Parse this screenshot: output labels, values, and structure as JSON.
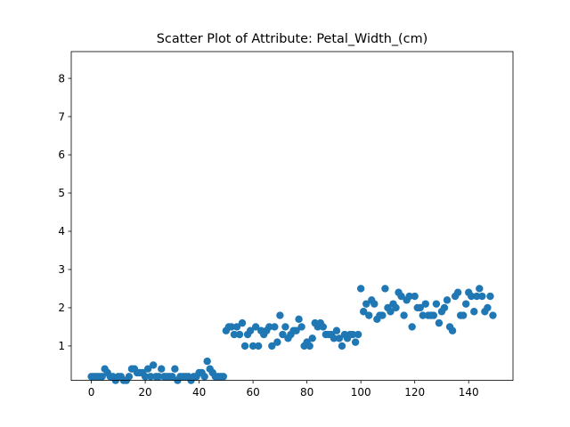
{
  "chart_data": {
    "type": "scatter",
    "title": "Scatter Plot of Attribute: Petal_Width_(cm)",
    "xlabel": "",
    "ylabel": "",
    "xlim": [
      -7.45,
      156.45
    ],
    "ylim": [
      0.1,
      8.7
    ],
    "xticks": [
      0,
      20,
      40,
      60,
      80,
      100,
      120,
      140
    ],
    "yticks": [
      1,
      2,
      3,
      4,
      5,
      6,
      7,
      8
    ],
    "grid": false,
    "color": "#1f77b4",
    "x": [
      0,
      1,
      2,
      3,
      4,
      5,
      6,
      7,
      8,
      9,
      10,
      11,
      12,
      13,
      14,
      15,
      16,
      17,
      18,
      19,
      20,
      21,
      22,
      23,
      24,
      25,
      26,
      27,
      28,
      29,
      30,
      31,
      32,
      33,
      34,
      35,
      36,
      37,
      38,
      39,
      40,
      41,
      42,
      43,
      44,
      45,
      46,
      47,
      48,
      49,
      50,
      51,
      52,
      53,
      54,
      55,
      56,
      57,
      58,
      59,
      60,
      61,
      62,
      63,
      64,
      65,
      66,
      67,
      68,
      69,
      70,
      71,
      72,
      73,
      74,
      75,
      76,
      77,
      78,
      79,
      80,
      81,
      82,
      83,
      84,
      85,
      86,
      87,
      88,
      89,
      90,
      91,
      92,
      93,
      94,
      95,
      96,
      97,
      98,
      99,
      100,
      101,
      102,
      103,
      104,
      105,
      106,
      107,
      108,
      109,
      110,
      111,
      112,
      113,
      114,
      115,
      116,
      117,
      118,
      119,
      120,
      121,
      122,
      123,
      124,
      125,
      126,
      127,
      128,
      129,
      130,
      131,
      132,
      133,
      134,
      135,
      136,
      137,
      138,
      139,
      140,
      141,
      142,
      143,
      144,
      145,
      146,
      147,
      148,
      149
    ],
    "y": [
      0.2,
      0.2,
      0.2,
      0.2,
      0.2,
      0.4,
      0.3,
      0.2,
      0.2,
      0.1,
      0.2,
      0.2,
      0.1,
      0.1,
      0.2,
      0.4,
      0.4,
      0.3,
      0.3,
      0.3,
      0.2,
      0.4,
      0.2,
      0.5,
      0.2,
      0.2,
      0.4,
      0.2,
      0.2,
      0.2,
      0.2,
      0.4,
      0.1,
      0.2,
      0.2,
      0.2,
      0.2,
      0.1,
      0.2,
      0.2,
      0.3,
      0.3,
      0.2,
      0.6,
      0.4,
      0.3,
      0.2,
      0.2,
      0.2,
      0.2,
      1.4,
      1.5,
      1.5,
      1.3,
      1.5,
      1.3,
      1.6,
      1.0,
      1.3,
      1.4,
      1.0,
      1.5,
      1.0,
      1.4,
      1.3,
      1.4,
      1.5,
      1.0,
      1.5,
      1.1,
      1.8,
      1.3,
      1.5,
      1.2,
      1.3,
      1.4,
      1.4,
      1.7,
      1.5,
      1.0,
      1.1,
      1.0,
      1.2,
      1.6,
      1.5,
      1.6,
      1.5,
      1.3,
      1.3,
      1.3,
      1.2,
      1.4,
      1.2,
      1.0,
      1.3,
      1.2,
      1.3,
      1.3,
      1.1,
      1.3,
      2.5,
      1.9,
      2.1,
      1.8,
      2.2,
      2.1,
      1.7,
      1.8,
      1.8,
      2.5,
      2.0,
      1.9,
      2.1,
      2.0,
      2.4,
      2.3,
      1.8,
      2.2,
      2.3,
      1.5,
      2.3,
      2.0,
      2.0,
      1.8,
      2.1,
      1.8,
      1.8,
      1.8,
      2.1,
      1.6,
      1.9,
      2.0,
      2.2,
      1.5,
      1.4,
      2.3,
      2.4,
      1.8,
      1.8,
      2.1,
      2.4,
      2.3,
      1.9,
      2.3,
      2.5,
      2.3,
      1.9,
      2.0,
      2.3,
      1.8
    ]
  }
}
